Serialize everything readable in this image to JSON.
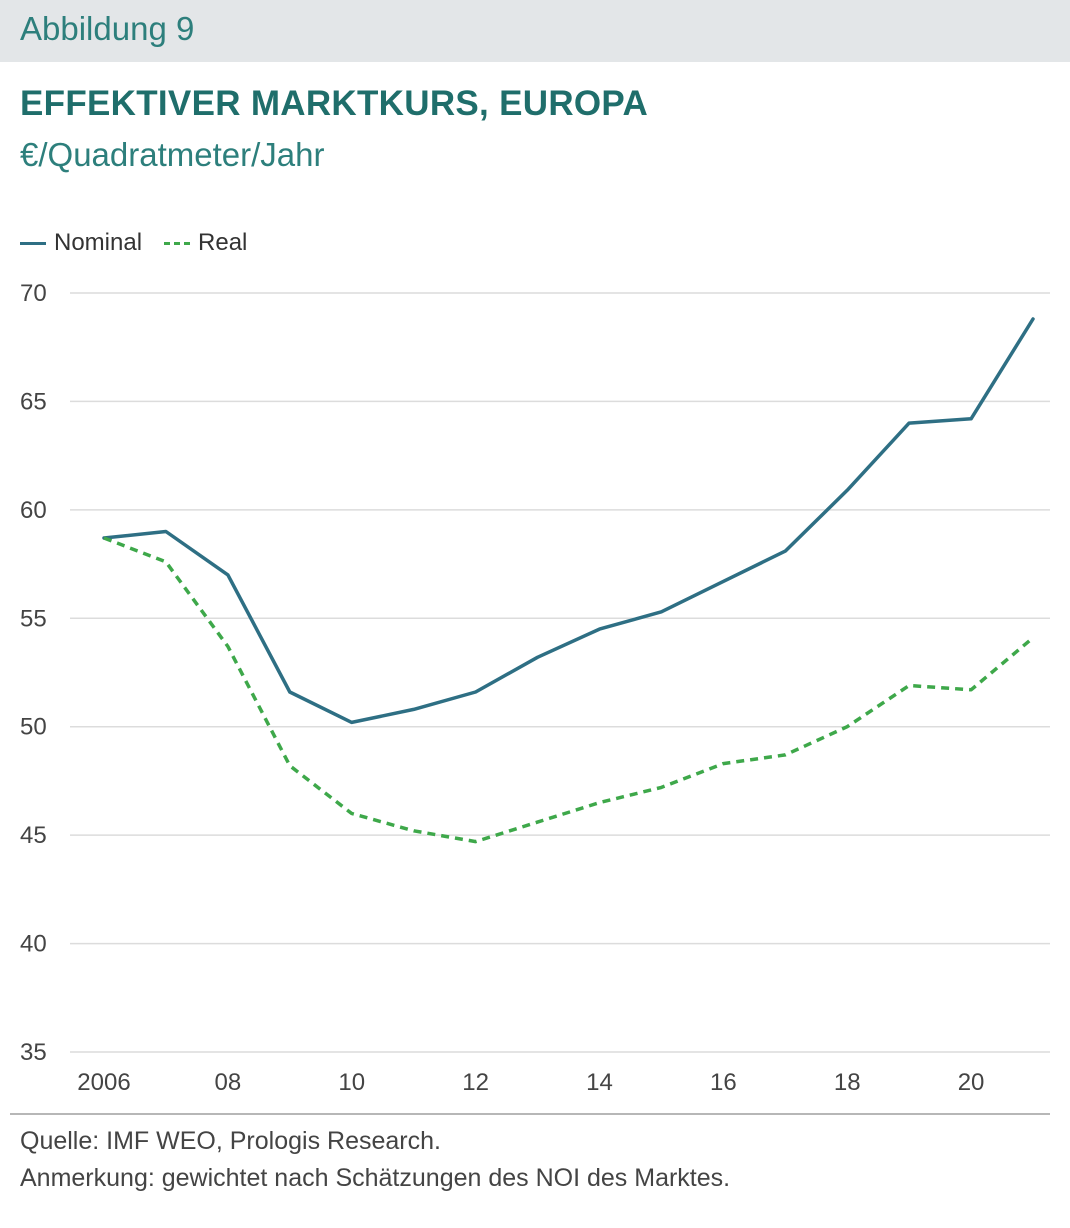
{
  "header": {
    "figure_label": "Abbildung 9"
  },
  "chart_data": {
    "type": "line",
    "title": "EFFEKTIVER MARKTKURS, EUROPA",
    "subtitle": "€/Quadratmeter/Jahr",
    "xlabel": "",
    "ylabel": "",
    "x": [
      2006,
      2007,
      2008,
      2009,
      2010,
      2011,
      2012,
      2013,
      2014,
      2015,
      2016,
      2017,
      2018,
      2019,
      2020,
      2021
    ],
    "xticks": [
      {
        "value": 2006,
        "label": "2006"
      },
      {
        "value": 2008,
        "label": "08"
      },
      {
        "value": 2010,
        "label": "10"
      },
      {
        "value": 2012,
        "label": "12"
      },
      {
        "value": 2014,
        "label": "14"
      },
      {
        "value": 2016,
        "label": "16"
      },
      {
        "value": 2018,
        "label": "18"
      },
      {
        "value": 2020,
        "label": "20"
      }
    ],
    "yticks": [
      35,
      40,
      45,
      50,
      55,
      60,
      65,
      70
    ],
    "ylim": [
      35,
      70
    ],
    "xlim": [
      2006,
      2021
    ],
    "grid": true,
    "legend_position": "top-left",
    "series": [
      {
        "name": "Nominal",
        "style": "solid",
        "color": "#2e6f84",
        "values": [
          58.7,
          59.0,
          57.0,
          51.6,
          50.2,
          50.8,
          51.6,
          53.2,
          54.5,
          55.3,
          56.7,
          58.1,
          60.9,
          64.0,
          64.2,
          68.8
        ]
      },
      {
        "name": "Real",
        "style": "dashed",
        "color": "#3ea84a",
        "values": [
          58.7,
          57.6,
          53.7,
          48.2,
          46.0,
          45.2,
          44.7,
          45.6,
          46.5,
          47.2,
          48.3,
          48.7,
          50.0,
          51.9,
          51.7,
          54.1
        ]
      }
    ]
  },
  "footer": {
    "source": "Quelle: IMF WEO, Prologis Research.",
    "note": "Anmerkung: gewichtet nach Schätzungen des NOI des Marktes."
  },
  "colors": {
    "header_band": "#e3e6e8",
    "title": "#1f6e6b",
    "accent": "#2d7f7c",
    "gridline": "#dcdcdc",
    "axis_text": "#444444"
  }
}
